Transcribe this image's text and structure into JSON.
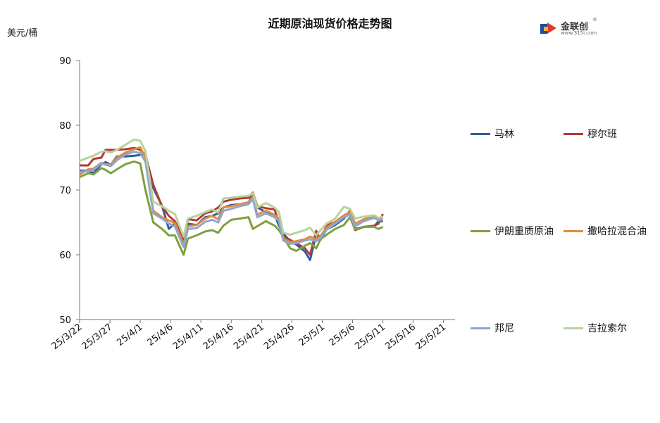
{
  "title": "近期原油现货价格走势图",
  "unit": "美元/桶",
  "logo": {
    "name": "金联创",
    "domain": "www.315i.com",
    "mark": "®"
  },
  "chart_data": {
    "type": "line",
    "title": "近期原油现货价格走势图",
    "ylabel": "美元/桶",
    "ylim": [
      50,
      90
    ],
    "yticks": [
      50,
      60,
      70,
      80,
      90
    ],
    "xlim": [
      0,
      43
    ],
    "xticks": [
      {
        "i": 0,
        "label": "25/3/22"
      },
      {
        "i": 3.5,
        "label": "25/3/27"
      },
      {
        "i": 7,
        "label": "25/4/1"
      },
      {
        "i": 10.5,
        "label": "25/4/6"
      },
      {
        "i": 14,
        "label": "25/4/11"
      },
      {
        "i": 17.5,
        "label": "25/4/16"
      },
      {
        "i": 21,
        "label": "25/4/21"
      },
      {
        "i": 24.5,
        "label": "25/4/26"
      },
      {
        "i": 28,
        "label": "25/5/1"
      },
      {
        "i": 31.5,
        "label": "25/5/6"
      },
      {
        "i": 35,
        "label": "25/5/11"
      },
      {
        "i": 38.5,
        "label": "25/5/16"
      },
      {
        "i": 42,
        "label": "25/5/21"
      }
    ],
    "grid": false,
    "legend": "right",
    "series": [
      {
        "name": "马林",
        "color": "#2e5d9c",
        "points": [
          [
            0,
            73
          ],
          [
            1,
            73
          ],
          [
            1.6,
            72.6
          ],
          [
            2.5,
            74
          ],
          [
            3,
            74.3
          ],
          [
            3.6,
            73.9
          ],
          [
            4.3,
            75.2
          ],
          [
            5.3,
            75.2
          ],
          [
            6.3,
            75.3
          ],
          [
            7,
            75.4
          ],
          [
            7.6,
            75.6
          ],
          [
            8.5,
            70.3
          ],
          [
            9.5,
            67.6
          ],
          [
            10.3,
            64
          ],
          [
            11,
            64.9
          ],
          [
            12,
            62
          ],
          [
            12.5,
            64.8
          ],
          [
            13.5,
            64.6
          ],
          [
            14.5,
            65.8
          ],
          [
            15.3,
            66
          ],
          [
            16,
            66.4
          ],
          [
            16.6,
            67.3
          ],
          [
            17.5,
            67.7
          ],
          [
            18.5,
            67.8
          ],
          [
            19.5,
            68.1
          ],
          [
            20,
            69.3
          ],
          [
            20.5,
            67.3
          ],
          [
            21.5,
            66.6
          ],
          [
            22.5,
            66.2
          ],
          [
            23,
            64.5
          ],
          [
            23.5,
            63.3
          ],
          [
            24.3,
            62.1
          ],
          [
            25,
            61.6
          ],
          [
            26,
            60.5
          ],
          [
            26.6,
            59.2
          ],
          [
            27.3,
            63.2
          ],
          [
            27.8,
            62.4
          ],
          [
            28.5,
            63.9
          ],
          [
            29.5,
            64.6
          ],
          [
            30.5,
            65.6
          ],
          [
            31.2,
            66.8
          ],
          [
            31.8,
            64
          ],
          [
            32.8,
            64.3
          ],
          [
            34,
            64.4
          ],
          [
            34.5,
            65.2
          ],
          [
            35,
            65.2
          ]
        ]
      },
      {
        "name": "穆尔班",
        "color": "#b23a3a",
        "points": [
          [
            0,
            73.8
          ],
          [
            1,
            73.8
          ],
          [
            1.6,
            74.8
          ],
          [
            2.5,
            75
          ],
          [
            3,
            76.2
          ],
          [
            4.3,
            76.2
          ],
          [
            5.3,
            76.3
          ],
          [
            6.3,
            76.5
          ],
          [
            7,
            76.2
          ],
          [
            7.6,
            75.4
          ],
          [
            8.5,
            70.8
          ],
          [
            9.5,
            67.5
          ],
          [
            10.3,
            66
          ],
          [
            11,
            65.2
          ],
          [
            12,
            62.3
          ],
          [
            12.5,
            65.5
          ],
          [
            13.5,
            65.3
          ],
          [
            14.5,
            66.4
          ],
          [
            15.3,
            66.7
          ],
          [
            16,
            67.3
          ],
          [
            16.6,
            68.2
          ],
          [
            17.5,
            68.5
          ],
          [
            18.5,
            68.7
          ],
          [
            19.5,
            68.8
          ],
          [
            20,
            69.6
          ],
          [
            20.5,
            67.5
          ],
          [
            21.5,
            67.2
          ],
          [
            22.5,
            67
          ],
          [
            23,
            65
          ],
          [
            23.5,
            62.8
          ],
          [
            24.3,
            62.3
          ],
          [
            25,
            61.8
          ],
          [
            26,
            61
          ],
          [
            26.6,
            60
          ],
          [
            27.3,
            63.7
          ],
          [
            27.8,
            62.3
          ],
          [
            28.5,
            64.5
          ],
          [
            29.5,
            65.1
          ],
          [
            30.5,
            65.9
          ],
          [
            31.2,
            66.2
          ],
          [
            31.8,
            63.8
          ],
          [
            32.8,
            64.3
          ],
          [
            34,
            64.5
          ],
          [
            34.5,
            64.8
          ],
          [
            35,
            66.3
          ]
        ]
      },
      {
        "name": "伊朗重质原油",
        "color": "#7da040",
        "points": [
          [
            0,
            72
          ],
          [
            1,
            72.6
          ],
          [
            1.6,
            72.4
          ],
          [
            2.5,
            73.4
          ],
          [
            3,
            73.1
          ],
          [
            3.6,
            72.6
          ],
          [
            4.3,
            73.2
          ],
          [
            5.3,
            74
          ],
          [
            6.3,
            74.4
          ],
          [
            7,
            74.1
          ],
          [
            7.6,
            70
          ],
          [
            8.5,
            65
          ],
          [
            9.5,
            64
          ],
          [
            10.3,
            63
          ],
          [
            11,
            63
          ],
          [
            12,
            60
          ],
          [
            12.5,
            62.5
          ],
          [
            13.5,
            63
          ],
          [
            14.5,
            63.6
          ],
          [
            15.3,
            63.8
          ],
          [
            16,
            63.4
          ],
          [
            16.6,
            64.5
          ],
          [
            17.5,
            65.4
          ],
          [
            18.5,
            65.6
          ],
          [
            19.5,
            65.8
          ],
          [
            20,
            64
          ],
          [
            20.5,
            64.4
          ],
          [
            21.5,
            65.2
          ],
          [
            22.5,
            64.5
          ],
          [
            23,
            63.8
          ],
          [
            23.5,
            62.8
          ],
          [
            24.3,
            61
          ],
          [
            25,
            60.6
          ],
          [
            26,
            61.4
          ],
          [
            26.6,
            61.8
          ],
          [
            27.3,
            61
          ],
          [
            27.8,
            62.4
          ],
          [
            28.5,
            63.1
          ],
          [
            29.5,
            64
          ],
          [
            30.5,
            64.6
          ],
          [
            31.2,
            65.8
          ],
          [
            31.8,
            63.9
          ],
          [
            32.8,
            64.3
          ],
          [
            34,
            64.3
          ],
          [
            34.5,
            64
          ],
          [
            35,
            64.3
          ]
        ]
      },
      {
        "name": "撒哈拉混合油",
        "color": "#e08a3c",
        "points": [
          [
            0,
            72.4
          ],
          [
            1,
            73.2
          ],
          [
            1.6,
            73.3
          ],
          [
            2.5,
            74.2
          ],
          [
            3,
            74
          ],
          [
            3.6,
            73.9
          ],
          [
            4.3,
            75
          ],
          [
            5.3,
            75.8
          ],
          [
            6.3,
            76.3
          ],
          [
            7,
            76.6
          ],
          [
            7.6,
            75
          ],
          [
            8.5,
            66.8
          ],
          [
            9.5,
            65.8
          ],
          [
            10.3,
            65.3
          ],
          [
            11,
            64.9
          ],
          [
            12,
            61.6
          ],
          [
            12.5,
            64.4
          ],
          [
            13.5,
            64.6
          ],
          [
            14.5,
            65.6
          ],
          [
            15.3,
            66
          ],
          [
            16,
            65.5
          ],
          [
            16.6,
            67.3
          ],
          [
            17.5,
            67.5
          ],
          [
            18.5,
            67.8
          ],
          [
            19.5,
            68.1
          ],
          [
            20,
            69
          ],
          [
            20.5,
            66.2
          ],
          [
            21.5,
            66.8
          ],
          [
            22.5,
            66.2
          ],
          [
            23,
            65.6
          ],
          [
            23.5,
            62.5
          ],
          [
            24.3,
            62
          ],
          [
            25,
            62.1
          ],
          [
            26,
            62.4
          ],
          [
            26.6,
            62.8
          ],
          [
            27.3,
            62.4
          ],
          [
            27.8,
            62.9
          ],
          [
            28.5,
            64.2
          ],
          [
            29.5,
            65.1
          ],
          [
            30.5,
            66.1
          ],
          [
            31.2,
            66.6
          ],
          [
            31.8,
            64.8
          ],
          [
            32.8,
            65.5
          ],
          [
            34,
            66
          ],
          [
            34.5,
            65.6
          ],
          [
            35,
            65.8
          ]
        ]
      },
      {
        "name": "邦尼",
        "color": "#8ea6d2",
        "points": [
          [
            0,
            72.8
          ],
          [
            1,
            72.9
          ],
          [
            1.6,
            73.1
          ],
          [
            2.5,
            74.1
          ],
          [
            3,
            73.9
          ],
          [
            3.6,
            73.7
          ],
          [
            4.3,
            74.6
          ],
          [
            5.3,
            75.5
          ],
          [
            6.3,
            75.9
          ],
          [
            7,
            75.7
          ],
          [
            7.6,
            74.4
          ],
          [
            8.5,
            66.4
          ],
          [
            9.5,
            65.6
          ],
          [
            10.3,
            64.8
          ],
          [
            11,
            64.4
          ],
          [
            12,
            61.2
          ],
          [
            12.5,
            64
          ],
          [
            13.5,
            64.1
          ],
          [
            14.5,
            65.1
          ],
          [
            15.3,
            65.4
          ],
          [
            16,
            65
          ],
          [
            16.6,
            66.8
          ],
          [
            17.5,
            67.1
          ],
          [
            18.5,
            67.5
          ],
          [
            19.5,
            67.8
          ],
          [
            20,
            68.6
          ],
          [
            20.5,
            65.8
          ],
          [
            21.5,
            66.4
          ],
          [
            22.5,
            65.8
          ],
          [
            23,
            65.2
          ],
          [
            23.5,
            62.2
          ],
          [
            24.3,
            61.7
          ],
          [
            25,
            61.8
          ],
          [
            26,
            62.2
          ],
          [
            26.6,
            62.4
          ],
          [
            27.3,
            62.1
          ],
          [
            27.8,
            62.6
          ],
          [
            28.5,
            63.9
          ],
          [
            29.5,
            64.8
          ],
          [
            30.5,
            65.8
          ],
          [
            31.2,
            66.2
          ],
          [
            31.8,
            64.4
          ],
          [
            32.8,
            65.2
          ],
          [
            34,
            65.7
          ],
          [
            34.5,
            65.3
          ],
          [
            35,
            65.5
          ]
        ]
      },
      {
        "name": "吉拉索尔",
        "color": "#b7d39a",
        "points": [
          [
            0,
            74.5
          ],
          [
            1,
            75
          ],
          [
            1.6,
            75.3
          ],
          [
            2.5,
            75.9
          ],
          [
            3,
            76
          ],
          [
            3.6,
            75.8
          ],
          [
            4.3,
            76.2
          ],
          [
            5.3,
            77
          ],
          [
            6.3,
            77.8
          ],
          [
            7,
            77.6
          ],
          [
            7.6,
            76
          ],
          [
            8.5,
            68.2
          ],
          [
            9.5,
            67.5
          ],
          [
            10.3,
            66.8
          ],
          [
            11,
            66.3
          ],
          [
            12,
            62.8
          ],
          [
            12.5,
            65.6
          ],
          [
            13.5,
            66
          ],
          [
            14.5,
            66.6
          ],
          [
            15.3,
            67
          ],
          [
            16,
            66.5
          ],
          [
            16.6,
            68.7
          ],
          [
            17.5,
            68.8
          ],
          [
            18.5,
            69
          ],
          [
            19.5,
            69.1
          ],
          [
            20,
            69.5
          ],
          [
            20.5,
            67.3
          ],
          [
            21.5,
            68
          ],
          [
            22.5,
            67.3
          ],
          [
            23,
            66.6
          ],
          [
            23.5,
            63.4
          ],
          [
            24.3,
            63.1
          ],
          [
            25,
            63.4
          ],
          [
            26,
            63.8
          ],
          [
            26.6,
            64.2
          ],
          [
            27.3,
            63
          ],
          [
            27.8,
            63.8
          ],
          [
            28.5,
            64.8
          ],
          [
            29.5,
            65.6
          ],
          [
            30.5,
            67.4
          ],
          [
            31.2,
            67.1
          ],
          [
            31.8,
            65.6
          ],
          [
            32.8,
            65.9
          ],
          [
            34,
            66.1
          ],
          [
            34.5,
            65.7
          ],
          [
            35,
            65.9
          ]
        ]
      }
    ]
  }
}
